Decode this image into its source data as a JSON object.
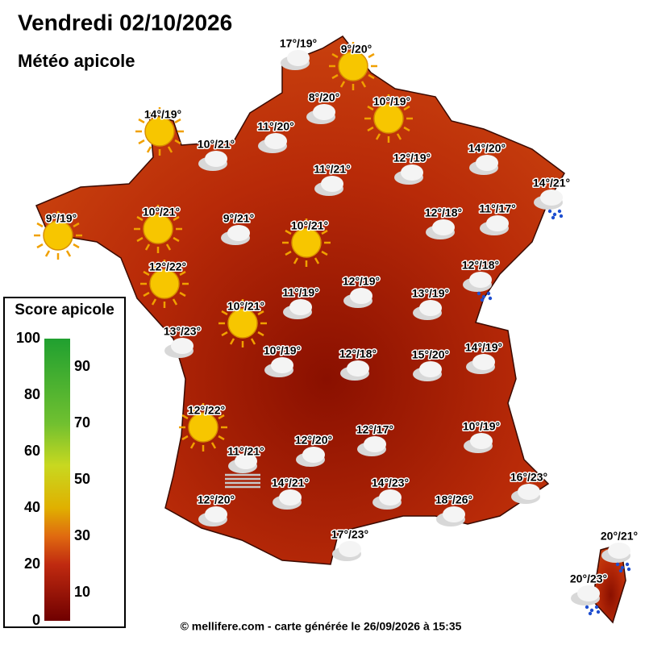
{
  "header": {
    "title": "Vendredi 02/10/2026",
    "subtitle": "Météo apicole"
  },
  "forecasts": [
    {
      "label": "17°/19°",
      "icon": "cloud"
    },
    {
      "label": "9°/20°",
      "icon": "sun"
    },
    {
      "label": "8°/20°",
      "icon": "cloud"
    },
    {
      "label": "10°/19°",
      "icon": "sun"
    },
    {
      "label": "14°/19°",
      "icon": "sun"
    },
    {
      "label": "11°/20°",
      "icon": "cloud"
    },
    {
      "label": "10°/21°",
      "icon": "cloud"
    },
    {
      "label": "14°/20°",
      "icon": "cloud"
    },
    {
      "label": "11°/21°",
      "icon": "cloud"
    },
    {
      "label": "12°/19°",
      "icon": "cloud"
    },
    {
      "label": "14°/21°",
      "icon": "rain"
    },
    {
      "label": "9°/19°",
      "icon": "sun"
    },
    {
      "label": "10°/21°",
      "icon": "sun"
    },
    {
      "label": "9°/21°",
      "icon": "cloud"
    },
    {
      "label": "10°/21°",
      "icon": "sun"
    },
    {
      "label": "12°/18°",
      "icon": "cloud"
    },
    {
      "label": "11°/17°",
      "icon": "cloud"
    },
    {
      "label": "12°/22°",
      "icon": "sun"
    },
    {
      "label": "12°/18°",
      "icon": "rain"
    },
    {
      "label": "12°/19°",
      "icon": "cloud"
    },
    {
      "label": "11°/19°",
      "icon": "cloud"
    },
    {
      "label": "13°/19°",
      "icon": "cloud"
    },
    {
      "label": "10°/21°",
      "icon": "sun"
    },
    {
      "label": "13°/23°",
      "icon": "cloud"
    },
    {
      "label": "10°/19°",
      "icon": "cloud"
    },
    {
      "label": "12°/18°",
      "icon": "cloud"
    },
    {
      "label": "15°/20°",
      "icon": "cloud"
    },
    {
      "label": "14°/19°",
      "icon": "cloud"
    },
    {
      "label": "12°/22°",
      "icon": "sun"
    },
    {
      "label": "10°/19°",
      "icon": "cloud"
    },
    {
      "label": "12°/17°",
      "icon": "cloud"
    },
    {
      "label": "11°/21°",
      "icon": "fog"
    },
    {
      "label": "12°/20°",
      "icon": "cloud"
    },
    {
      "label": "14°/21°",
      "icon": "cloud"
    },
    {
      "label": "14°/23°",
      "icon": "cloud"
    },
    {
      "label": "16°/23°",
      "icon": "cloud"
    },
    {
      "label": "12°/20°",
      "icon": "cloud"
    },
    {
      "label": "18°/26°",
      "icon": "cloud"
    },
    {
      "label": "17°/23°",
      "icon": "cloud"
    },
    {
      "label": "20°/21°",
      "icon": "rain"
    },
    {
      "label": "20°/23°",
      "icon": "rain"
    }
  ],
  "legend": {
    "title": "Score apicole",
    "range": [
      0,
      100
    ],
    "ticks": [
      0,
      10,
      20,
      30,
      40,
      50,
      60,
      70,
      80,
      90,
      100
    ]
  },
  "footer": "© mellifere.com - carte générée le 26/09/2026 à 15:35"
}
